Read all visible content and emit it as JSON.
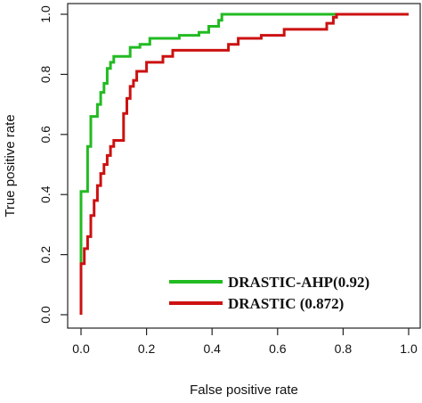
{
  "chart_data": {
    "type": "line",
    "title": "",
    "xlabel": "False positive rate",
    "ylabel": "True positive rate",
    "xlim": [
      0,
      1
    ],
    "ylim": [
      0,
      1
    ],
    "x_ticks": [
      "0.0",
      "0.2",
      "0.4",
      "0.6",
      "0.8",
      "1.0"
    ],
    "y_ticks": [
      "0.0",
      "0.2",
      "0.4",
      "0.6",
      "0.8",
      "1.0"
    ],
    "grid": false,
    "legend_position": "bottom-right",
    "series": [
      {
        "name": "DRASTIC-AHP(0.92)",
        "color": "#22bb22",
        "points": [
          [
            0,
            0
          ],
          [
            0,
            0.41
          ],
          [
            0.02,
            0.41
          ],
          [
            0.02,
            0.56
          ],
          [
            0.03,
            0.56
          ],
          [
            0.03,
            0.66
          ],
          [
            0.05,
            0.66
          ],
          [
            0.05,
            0.7
          ],
          [
            0.06,
            0.7
          ],
          [
            0.06,
            0.74
          ],
          [
            0.07,
            0.74
          ],
          [
            0.07,
            0.77
          ],
          [
            0.08,
            0.77
          ],
          [
            0.08,
            0.82
          ],
          [
            0.09,
            0.82
          ],
          [
            0.09,
            0.84
          ],
          [
            0.1,
            0.84
          ],
          [
            0.1,
            0.86
          ],
          [
            0.12,
            0.86
          ],
          [
            0.15,
            0.86
          ],
          [
            0.15,
            0.89
          ],
          [
            0.18,
            0.89
          ],
          [
            0.18,
            0.9
          ],
          [
            0.21,
            0.9
          ],
          [
            0.21,
            0.92
          ],
          [
            0.3,
            0.92
          ],
          [
            0.3,
            0.93
          ],
          [
            0.36,
            0.93
          ],
          [
            0.36,
            0.94
          ],
          [
            0.39,
            0.94
          ],
          [
            0.39,
            0.96
          ],
          [
            0.42,
            0.96
          ],
          [
            0.42,
            0.98
          ],
          [
            0.43,
            0.98
          ],
          [
            0.43,
            1.0
          ],
          [
            1.0,
            1.0
          ]
        ]
      },
      {
        "name": "DRASTIC (0.872)",
        "color": "#cc1111",
        "points": [
          [
            0,
            0
          ],
          [
            0,
            0.17
          ],
          [
            0.01,
            0.17
          ],
          [
            0.01,
            0.22
          ],
          [
            0.02,
            0.22
          ],
          [
            0.02,
            0.26
          ],
          [
            0.03,
            0.26
          ],
          [
            0.03,
            0.33
          ],
          [
            0.04,
            0.33
          ],
          [
            0.04,
            0.38
          ],
          [
            0.05,
            0.38
          ],
          [
            0.05,
            0.43
          ],
          [
            0.06,
            0.43
          ],
          [
            0.06,
            0.47
          ],
          [
            0.07,
            0.47
          ],
          [
            0.07,
            0.5
          ],
          [
            0.08,
            0.5
          ],
          [
            0.08,
            0.53
          ],
          [
            0.09,
            0.53
          ],
          [
            0.09,
            0.56
          ],
          [
            0.1,
            0.56
          ],
          [
            0.1,
            0.58
          ],
          [
            0.13,
            0.58
          ],
          [
            0.13,
            0.67
          ],
          [
            0.14,
            0.67
          ],
          [
            0.14,
            0.72
          ],
          [
            0.15,
            0.72
          ],
          [
            0.15,
            0.76
          ],
          [
            0.16,
            0.76
          ],
          [
            0.16,
            0.78
          ],
          [
            0.17,
            0.78
          ],
          [
            0.17,
            0.81
          ],
          [
            0.2,
            0.81
          ],
          [
            0.2,
            0.84
          ],
          [
            0.25,
            0.84
          ],
          [
            0.25,
            0.86
          ],
          [
            0.28,
            0.86
          ],
          [
            0.28,
            0.88
          ],
          [
            0.45,
            0.88
          ],
          [
            0.45,
            0.9
          ],
          [
            0.48,
            0.9
          ],
          [
            0.48,
            0.92
          ],
          [
            0.55,
            0.92
          ],
          [
            0.55,
            0.93
          ],
          [
            0.62,
            0.93
          ],
          [
            0.62,
            0.95
          ],
          [
            0.75,
            0.95
          ],
          [
            0.75,
            0.97
          ],
          [
            0.77,
            0.97
          ],
          [
            0.77,
            0.99
          ],
          [
            0.78,
            0.99
          ],
          [
            0.78,
            1.0
          ],
          [
            1.0,
            1.0
          ]
        ]
      }
    ]
  }
}
